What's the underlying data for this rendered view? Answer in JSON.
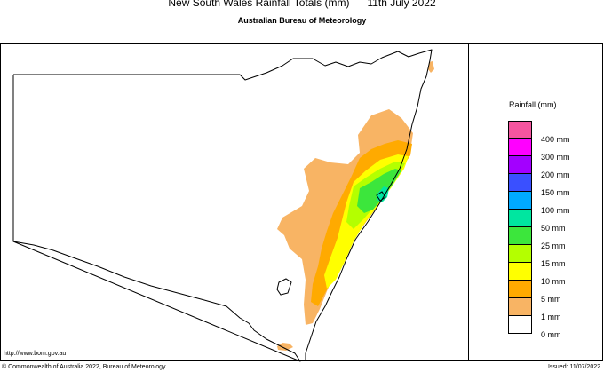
{
  "title": "New South Wales Rainfall Totals (mm)      11th July 2022",
  "subtitle": "Australian Bureau of Meteorology",
  "legend": {
    "title": "Rainfall (mm)",
    "items": [
      {
        "label": "400 mm",
        "color": "#f5559f"
      },
      {
        "label": "300 mm",
        "color": "#ff00ff"
      },
      {
        "label": "200 mm",
        "color": "#a300ff"
      },
      {
        "label": "150 mm",
        "color": "#3a50ff"
      },
      {
        "label": "100 mm",
        "color": "#00aaff"
      },
      {
        "label": "50 mm",
        "color": "#00e6a0"
      },
      {
        "label": "25 mm",
        "color": "#3ce63c"
      },
      {
        "label": "15 mm",
        "color": "#b4ff00"
      },
      {
        "label": "10 mm",
        "color": "#ffff00"
      },
      {
        "label": "5 mm",
        "color": "#ffaa00"
      },
      {
        "label": "1 mm",
        "color": "#f8b464"
      },
      {
        "label": "0 mm",
        "color": "#ffffff"
      }
    ]
  },
  "footer": {
    "url": "http://www.bom.gov.au",
    "copyright": "© Commonwealth of Australia 2022, Bureau of Meteorology",
    "issued": "Issued: 11/07/2022"
  }
}
